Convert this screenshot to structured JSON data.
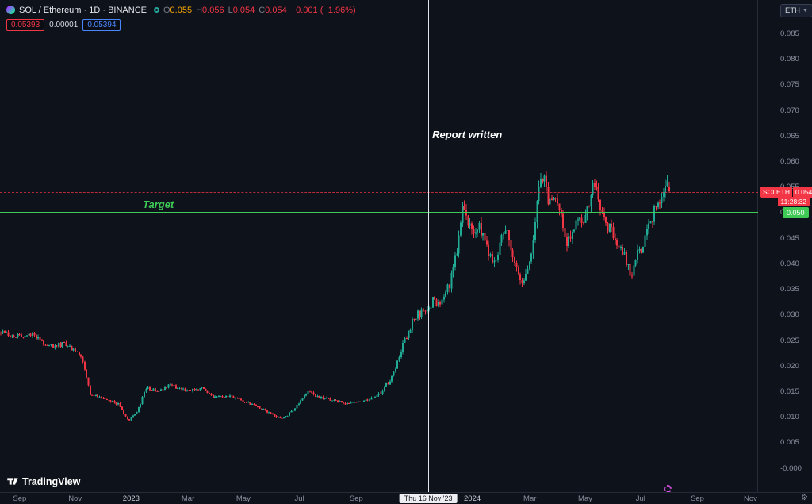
{
  "colors": {
    "bg": "#0e121b",
    "up": "#22ab94",
    "down": "#f23645",
    "target_green": "#3fca55",
    "open_value": "#f7a600",
    "vline_white": "#e3e6ee"
  },
  "header": {
    "symbol_title": "SOL / Ethereum · 1D · BINANCE",
    "ohlc": {
      "items": [
        {
          "label": "O",
          "value": "0.055"
        },
        {
          "label": "H",
          "value": "0.056"
        },
        {
          "label": "L",
          "value": "0.054"
        },
        {
          "label": "C",
          "value": "0.054"
        }
      ],
      "change": "−0.001 (−1.96%)"
    },
    "sell_price": "0.05393",
    "spread": "0.00001",
    "buy_price": "0.05394"
  },
  "toolbar": {
    "unit_button": "ETH"
  },
  "annotations": {
    "report_label": "Report written",
    "target_label": "Target",
    "event_date_label": "Thu 16 Nov '23",
    "event_t": 0.565,
    "target_price": 0.05,
    "current_price": 0.054
  },
  "price_axis": {
    "ticks": [
      "0.085",
      "0.080",
      "0.075",
      "0.070",
      "0.065",
      "0.060",
      "0.055",
      "0.050",
      "0.045",
      "0.040",
      "0.035",
      "0.030",
      "0.025",
      "0.020",
      "0.015",
      "0.010",
      "0.005",
      "-0.000"
    ],
    "current_badge": {
      "symbol": "SOLETH",
      "price": "0.054",
      "countdown": "11:28:32"
    },
    "target_badge": "0.050"
  },
  "time_axis": {
    "ticks": [
      {
        "label": "Sep",
        "t": 0.026
      },
      {
        "label": "Nov",
        "t": 0.099
      },
      {
        "label": "2023",
        "t": 0.173,
        "bright": true
      },
      {
        "label": "Mar",
        "t": 0.248
      },
      {
        "label": "May",
        "t": 0.321
      },
      {
        "label": "Jul",
        "t": 0.395
      },
      {
        "label": "Sep",
        "t": 0.47
      },
      {
        "label": "2024",
        "t": 0.623,
        "bright": true
      },
      {
        "label": "Mar",
        "t": 0.699
      },
      {
        "label": "May",
        "t": 0.772
      },
      {
        "label": "Jul",
        "t": 0.845
      },
      {
        "label": "Sep",
        "t": 0.92
      },
      {
        "label": "Nov",
        "t": 0.99
      }
    ]
  },
  "footer": {
    "logo_text": "TradingView"
  },
  "chart_data": {
    "type": "candlestick",
    "symbol": "SOLETH",
    "exchange": "BINANCE",
    "interval": "1D",
    "title": "SOL / Ethereum · 1D · BINANCE",
    "ylim": [
      -0.0047,
      0.0915
    ],
    "y_axis": {
      "price_at_top": 0.0915,
      "price_at_bottom": -0.0047,
      "tick_step": 0.005
    },
    "last_ohlc": {
      "open": 0.055,
      "high": 0.056,
      "low": 0.054,
      "close": 0.054
    },
    "data_span_t": [
      0.0,
      0.884
    ],
    "num_candles": 360,
    "noise": {
      "base": 0.038,
      "late": 0.055,
      "late_t": 0.5,
      "wick": 0.45
    },
    "anchors": [
      [
        0.0,
        0.0265
      ],
      [
        0.026,
        0.0258
      ],
      [
        0.045,
        0.0262
      ],
      [
        0.063,
        0.0238
      ],
      [
        0.085,
        0.0242
      ],
      [
        0.099,
        0.0232
      ],
      [
        0.11,
        0.0215
      ],
      [
        0.12,
        0.0145
      ],
      [
        0.136,
        0.0138
      ],
      [
        0.157,
        0.0125
      ],
      [
        0.171,
        0.0092
      ],
      [
        0.183,
        0.0112
      ],
      [
        0.194,
        0.0158
      ],
      [
        0.209,
        0.015
      ],
      [
        0.225,
        0.0163
      ],
      [
        0.248,
        0.015
      ],
      [
        0.267,
        0.0156
      ],
      [
        0.282,
        0.0138
      ],
      [
        0.303,
        0.014
      ],
      [
        0.321,
        0.0131
      ],
      [
        0.345,
        0.0118
      ],
      [
        0.366,
        0.01
      ],
      [
        0.377,
        0.0098
      ],
      [
        0.395,
        0.0125
      ],
      [
        0.408,
        0.0152
      ],
      [
        0.418,
        0.014
      ],
      [
        0.439,
        0.0133
      ],
      [
        0.46,
        0.0126
      ],
      [
        0.476,
        0.013
      ],
      [
        0.492,
        0.0136
      ],
      [
        0.505,
        0.015
      ],
      [
        0.518,
        0.0178
      ],
      [
        0.528,
        0.022
      ],
      [
        0.539,
        0.0262
      ],
      [
        0.547,
        0.029
      ],
      [
        0.554,
        0.0302
      ],
      [
        0.562,
        0.031
      ],
      [
        0.568,
        0.0318
      ],
      [
        0.574,
        0.0335
      ],
      [
        0.582,
        0.0312
      ],
      [
        0.589,
        0.034
      ],
      [
        0.596,
        0.0368
      ],
      [
        0.605,
        0.043
      ],
      [
        0.612,
        0.0528
      ],
      [
        0.617,
        0.0488
      ],
      [
        0.623,
        0.0462
      ],
      [
        0.633,
        0.0478
      ],
      [
        0.643,
        0.0428
      ],
      [
        0.654,
        0.0398
      ],
      [
        0.661,
        0.0448
      ],
      [
        0.669,
        0.046
      ],
      [
        0.68,
        0.0412
      ],
      [
        0.687,
        0.0372
      ],
      [
        0.694,
        0.0368
      ],
      [
        0.699,
        0.0398
      ],
      [
        0.706,
        0.0468
      ],
      [
        0.712,
        0.0545
      ],
      [
        0.718,
        0.0578
      ],
      [
        0.724,
        0.0518
      ],
      [
        0.732,
        0.0538
      ],
      [
        0.741,
        0.0502
      ],
      [
        0.748,
        0.0428
      ],
      [
        0.755,
        0.0462
      ],
      [
        0.764,
        0.0498
      ],
      [
        0.772,
        0.0488
      ],
      [
        0.779,
        0.0528
      ],
      [
        0.787,
        0.0565
      ],
      [
        0.795,
        0.0498
      ],
      [
        0.803,
        0.0472
      ],
      [
        0.812,
        0.0458
      ],
      [
        0.819,
        0.0432
      ],
      [
        0.826,
        0.0412
      ],
      [
        0.834,
        0.0378
      ],
      [
        0.842,
        0.0425
      ],
      [
        0.849,
        0.0432
      ],
      [
        0.856,
        0.0462
      ],
      [
        0.864,
        0.0498
      ],
      [
        0.871,
        0.0522
      ],
      [
        0.878,
        0.0558
      ],
      [
        0.884,
        0.054
      ]
    ]
  }
}
